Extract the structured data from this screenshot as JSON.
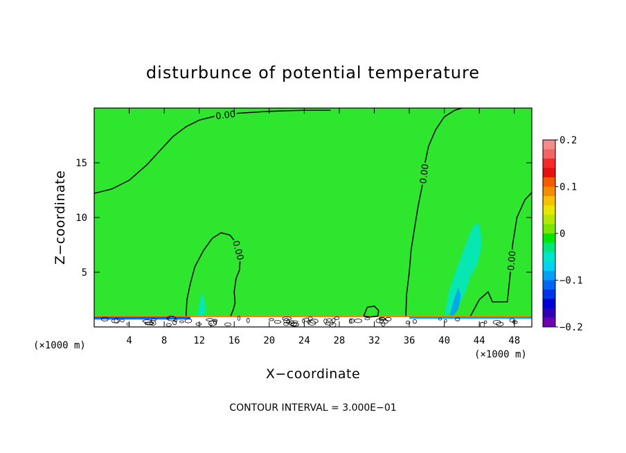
{
  "chart_data": {
    "type": "contour",
    "title": "disturbunce of potential temperature",
    "xlabel": "X−coordinate",
    "ylabel": "Z−coordinate",
    "x_unit_label": "(×1000 m)",
    "y_unit_label": "(×1000 m)",
    "xlim": [
      0,
      50
    ],
    "ylim": [
      0,
      20
    ],
    "x_ticks": [
      4,
      8,
      12,
      16,
      20,
      24,
      28,
      32,
      36,
      40,
      44,
      48
    ],
    "y_ticks": [
      5,
      10,
      15
    ],
    "background_value": 0.0,
    "contour_lines": [
      {
        "label": "0.00",
        "x": [
          0,
          2,
          4,
          6,
          7.5,
          9,
          10.5,
          12,
          14,
          16,
          18,
          20,
          22,
          24,
          26,
          27
        ],
        "y": [
          12.2,
          12.6,
          13.4,
          14.8,
          16.1,
          17.4,
          18.3,
          18.9,
          19.3,
          19.5,
          19.6,
          19.7,
          19.75,
          19.8,
          19.8,
          19.8
        ]
      },
      {
        "label": "0.00",
        "x": [
          10.5,
          10.6,
          11,
          11.5,
          12.5,
          13.5,
          14.5,
          15.5,
          16.3,
          16.7,
          16.6,
          16.2,
          16.0,
          16.1,
          15.9,
          15.6
        ],
        "y": [
          1,
          2.5,
          4,
          5.5,
          7.0,
          8.1,
          8.6,
          8.4,
          7.6,
          6.4,
          5.2,
          4.4,
          3.2,
          2.2,
          1.6,
          1
        ]
      },
      {
        "label": "0.00",
        "x": [
          35.6,
          35.7,
          36.0,
          36.2,
          36.6,
          37.0,
          37.5,
          37.8,
          38.2,
          39.0,
          40.0,
          41.2,
          42.0
        ],
        "y": [
          1,
          3,
          5,
          7,
          9,
          11,
          13,
          15,
          16.5,
          18.0,
          19.2,
          19.8,
          20
        ]
      },
      {
        "label": "0.00",
        "x": [
          43.0,
          44.0,
          45.0,
          45.5,
          47.2,
          47.5,
          47.8,
          48.3,
          49.2,
          50
        ],
        "y": [
          1,
          2.5,
          3.2,
          2.3,
          2.3,
          4.6,
          7.5,
          10.0,
          11.6,
          12.3
        ]
      },
      {
        "label": "",
        "x": [
          30.8,
          31.2,
          32.0,
          32.5,
          32.4,
          31.5,
          30.8
        ],
        "y": [
          1.0,
          1.8,
          1.9,
          1.5,
          1.0,
          0.9,
          1.0
        ]
      }
    ],
    "shaded_regions": [
      {
        "value": -0.05,
        "x": [
          11.8,
          12.1,
          12.3,
          12.6,
          12.8,
          12.5,
          11.8
        ],
        "y": [
          1,
          2.5,
          3.2,
          2.4,
          1.5,
          1,
          1
        ]
      },
      {
        "value": -0.05,
        "x": [
          40.0,
          40.6,
          41.5,
          42.2,
          43.0,
          43.6,
          44.1,
          44.3,
          43.8,
          43.0,
          42.3,
          41.5,
          40.2,
          40.0
        ],
        "y": [
          1,
          3.5,
          5.5,
          7.0,
          8.7,
          9.5,
          9.2,
          7.5,
          5.8,
          4.6,
          3.0,
          1.8,
          1.0,
          1
        ]
      },
      {
        "value": -0.08,
        "x": [
          40.6,
          41.1,
          41.6,
          41.9,
          41.6,
          41.0,
          40.6
        ],
        "y": [
          1,
          2.5,
          3.6,
          2.8,
          1.6,
          1.0,
          1
        ]
      }
    ],
    "colorbar": {
      "min": -0.2,
      "max": 0.2,
      "tick_labels": [
        "0.2",
        "0.1",
        "0",
        "−0.1",
        "−0.2"
      ],
      "tick_values": [
        0.2,
        0.1,
        0,
        -0.1,
        -0.2
      ],
      "colors": [
        "#f48c8c",
        "#f46464",
        "#f42a2a",
        "#e61010",
        "#f45a00",
        "#f48c00",
        "#f4c200",
        "#e6e600",
        "#b4e600",
        "#78e600",
        "#00e600",
        "#00e678",
        "#00e6c8",
        "#00d2f4",
        "#00a0f4",
        "#0064f4",
        "#0032e6",
        "#0000d2",
        "#3200b4",
        "#6e00b4"
      ]
    },
    "field_color": "#2ee62e",
    "contour_interval_text": "CONTOUR INTERVAL = 3.000E−01",
    "grid": false
  }
}
